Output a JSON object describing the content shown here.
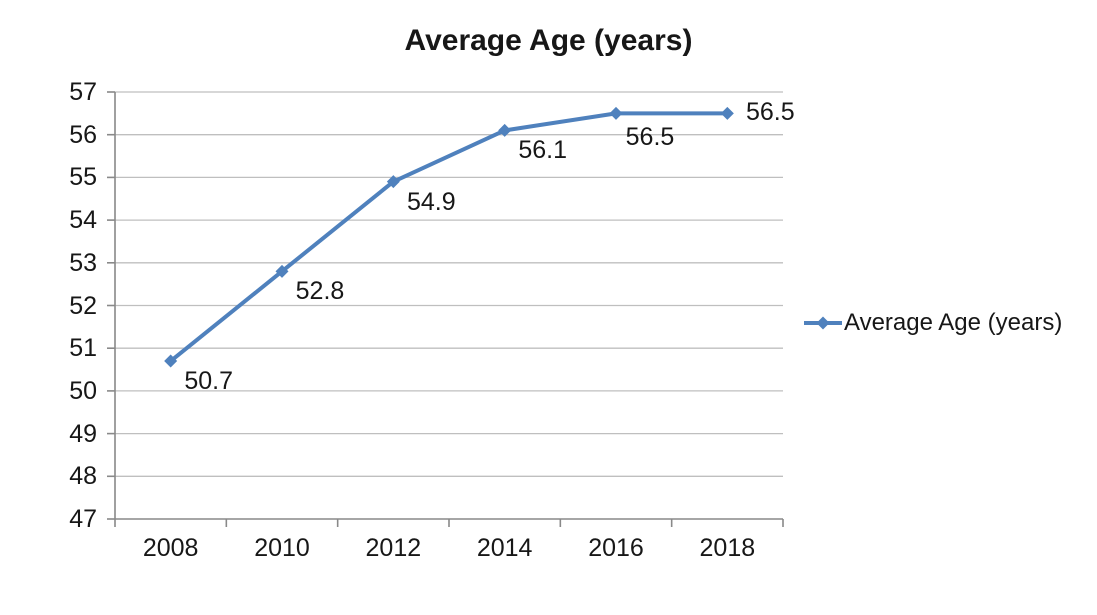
{
  "title": "Average Age (years)",
  "legend": {
    "label": "Average Age (years)",
    "position": "right"
  },
  "colors": {
    "line": "#4F81BD",
    "marker": "#4F81BD",
    "grid": "#BFBFBF",
    "axis": "#898989",
    "text": "#171717"
  },
  "chart_data": {
    "type": "line",
    "categories": [
      "2008",
      "2010",
      "2012",
      "2014",
      "2016",
      "2018"
    ],
    "series": [
      {
        "name": "Average Age (years)",
        "values": [
          50.7,
          52.8,
          54.9,
          56.1,
          56.5,
          56.5
        ]
      }
    ],
    "data_labels": [
      "50.7",
      "52.8",
      "54.9",
      "56.1",
      "56.5",
      "56.5"
    ],
    "title": "Average Age (years)",
    "xlabel": "",
    "ylabel": "",
    "ylim": [
      47,
      57
    ],
    "ytick_step": 1,
    "yticks": [
      47,
      48,
      49,
      50,
      51,
      52,
      53,
      54,
      55,
      56,
      57
    ],
    "grid": true,
    "marker": "diamond",
    "legend_position": "right",
    "label_positions": [
      "below-right",
      "below-right",
      "below-right",
      "below-right",
      "below",
      "right"
    ]
  }
}
